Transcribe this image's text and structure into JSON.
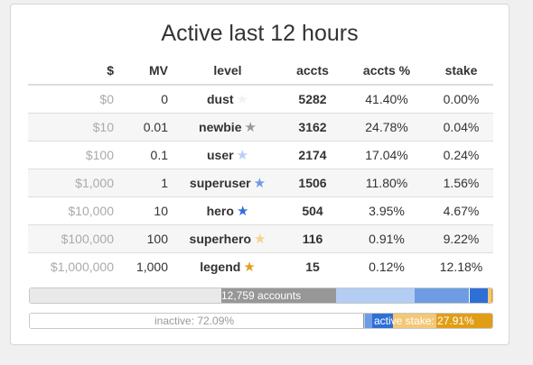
{
  "title": "Active last 12 hours",
  "columns": {
    "usd": "$",
    "mv": "MV",
    "level": "level",
    "accts": "accts",
    "accts_pct": "accts %",
    "stake": "stake"
  },
  "rows": [
    {
      "usd": "$0",
      "mv": "0",
      "level": "dust",
      "star_icon": "star-icon",
      "star_color": "#f2f2f2",
      "accts": "5282",
      "accts_pct": "41.40%",
      "stake": "0.00%"
    },
    {
      "usd": "$10",
      "mv": "0.01",
      "level": "newbie",
      "star_icon": "star-icon",
      "star_color": "#999999",
      "accts": "3162",
      "accts_pct": "24.78%",
      "stake": "0.04%"
    },
    {
      "usd": "$100",
      "mv": "0.1",
      "level": "user",
      "star_icon": "star-icon",
      "star_color": "#b9d0f3",
      "accts": "2174",
      "accts_pct": "17.04%",
      "stake": "0.24%"
    },
    {
      "usd": "$1,000",
      "mv": "1",
      "level": "superuser",
      "star_icon": "star-icon",
      "star_color": "#6d9be3",
      "accts": "1506",
      "accts_pct": "11.80%",
      "stake": "1.56%"
    },
    {
      "usd": "$10,000",
      "mv": "10",
      "level": "hero",
      "star_icon": "star-icon",
      "star_color": "#2e6fd6",
      "accts": "504",
      "accts_pct": "3.95%",
      "stake": "4.67%"
    },
    {
      "usd": "$100,000",
      "mv": "100",
      "level": "superhero",
      "star_icon": "star-icon",
      "star_color": "#f6d28f",
      "accts": "116",
      "accts_pct": "0.91%",
      "stake": "9.22%"
    },
    {
      "usd": "$1,000,000",
      "mv": "1,000",
      "level": "legend",
      "star_icon": "star-icon",
      "star_color": "#e0a11a",
      "accts": "15",
      "accts_pct": "0.12%",
      "stake": "12.18%"
    }
  ],
  "accounts_bar": {
    "label": "12,759 accounts",
    "label_color": "#ffffff",
    "segments": [
      {
        "level": "dust",
        "fraction": 0.414,
        "color": "#e9e9e9"
      },
      {
        "level": "newbie",
        "fraction": 0.2478,
        "color": "#979797"
      },
      {
        "level": "user",
        "fraction": 0.1704,
        "color": "#b3cdf3"
      },
      {
        "level": "superuser",
        "fraction": 0.118,
        "color": "#6e9ce3"
      },
      {
        "level": "hero",
        "fraction": 0.0395,
        "color": "#2e6fd6"
      },
      {
        "level": "superhero",
        "fraction": 0.0091,
        "color": "#f2c777"
      },
      {
        "level": "legend",
        "fraction": 0.0012,
        "color": "#e09e16"
      }
    ]
  },
  "stake_bar": {
    "inactive_label": "inactive: 72.09%",
    "inactive_label_color": "#999999",
    "active_label": "active stake: 27.91%",
    "active_label_color": "#ffffff",
    "segments": [
      {
        "name": "inactive",
        "fraction": 0.7209,
        "color": "#ffffff"
      },
      {
        "level": "dust",
        "fraction": 0.0,
        "color": "#e9e9e9"
      },
      {
        "level": "newbie",
        "fraction": 0.0004,
        "color": "#979797"
      },
      {
        "level": "user",
        "fraction": 0.0024,
        "color": "#b3cdf3"
      },
      {
        "level": "superuser",
        "fraction": 0.0156,
        "color": "#6e9ce3"
      },
      {
        "level": "hero",
        "fraction": 0.0467,
        "color": "#2e6fd6"
      },
      {
        "level": "superhero",
        "fraction": 0.0922,
        "color": "#f2c777"
      },
      {
        "level": "legend",
        "fraction": 0.1218,
        "color": "#e09e16"
      }
    ]
  }
}
